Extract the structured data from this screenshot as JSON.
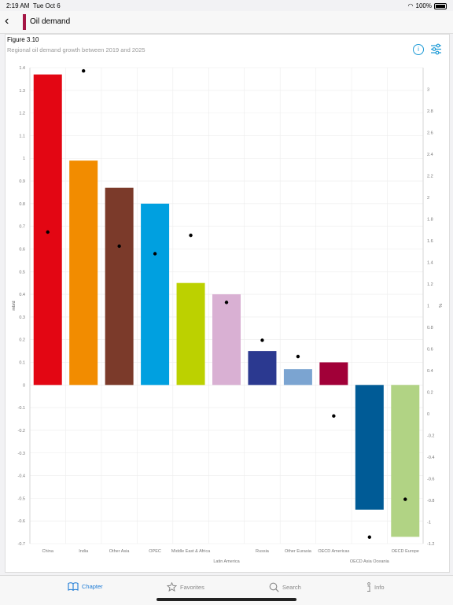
{
  "status": {
    "time": "2:19 AM",
    "date": "Tue Oct 6",
    "battery": "100%"
  },
  "nav": {
    "title": "Oil demand"
  },
  "figure": {
    "label": "Figure 3.10",
    "subtitle": "Regional oil demand growth between 2019 and 2025"
  },
  "tabs": {
    "chapter": "Chapter",
    "favorites": "Favorites",
    "search": "Search",
    "info": "Info"
  },
  "chart_data": {
    "type": "bar",
    "categories": [
      "China",
      "India",
      "Other Asia",
      "OPEC",
      "Middle East & Africa",
      "Latin America",
      "Russia",
      "Other Eurasia",
      "OECD Americas",
      "OECD Asia Oceania",
      "OECD Europe"
    ],
    "category_labels_bottom": [
      "China",
      "India",
      "Other Asia",
      "OPEC",
      "Middle East & Africa",
      "",
      "Russia",
      "Other Eurasia",
      "OECD Americas",
      "",
      "OECD Europe"
    ],
    "category_labels_lower": [
      "",
      "",
      "",
      "",
      "",
      "Latin America",
      "",
      "",
      "",
      "OECD Asia Oceania",
      ""
    ],
    "series": [
      {
        "axis": "left",
        "kind": "bar",
        "values": [
          1.37,
          0.99,
          0.87,
          0.8,
          0.45,
          0.4,
          0.15,
          0.07,
          0.1,
          -0.55,
          -0.67
        ]
      },
      {
        "axis": "right",
        "kind": "point",
        "values": [
          1.68,
          3.17,
          1.55,
          1.48,
          1.65,
          1.03,
          0.68,
          0.53,
          -0.02,
          -1.14,
          -0.79
        ]
      }
    ],
    "colors": [
      "#e30613",
      "#f28c00",
      "#7b3a2a",
      "#00a0e0",
      "#bcd100",
      "#d9b0d3",
      "#2b3990",
      "#7ba4d1",
      "#a10038",
      "#005b96",
      "#b1d384"
    ],
    "point_color": "#000000",
    "ylabel_left": "mb/d",
    "ylabel_right": "%",
    "ylim_left": [
      -0.7,
      1.4
    ],
    "ylim_right": [
      -1.2,
      3.2
    ],
    "yticks_left": [
      1.4,
      1.3,
      1.2,
      1.1,
      1,
      0.9,
      0.8,
      0.7,
      0.6,
      0.5,
      0.4,
      0.3,
      0.2,
      0.1,
      0,
      -0.1,
      -0.2,
      -0.3,
      -0.4,
      -0.5,
      -0.6,
      -0.7
    ],
    "yticks_right": [
      3,
      2.8,
      2.6,
      2.4,
      2.2,
      2,
      1.8,
      1.6,
      1.4,
      1.2,
      1,
      0.8,
      0.6,
      0.4,
      0.2,
      0,
      -0.2,
      -0.4,
      -0.6,
      -0.8,
      -1,
      -1.2
    ],
    "grid": true,
    "legend": "none"
  }
}
